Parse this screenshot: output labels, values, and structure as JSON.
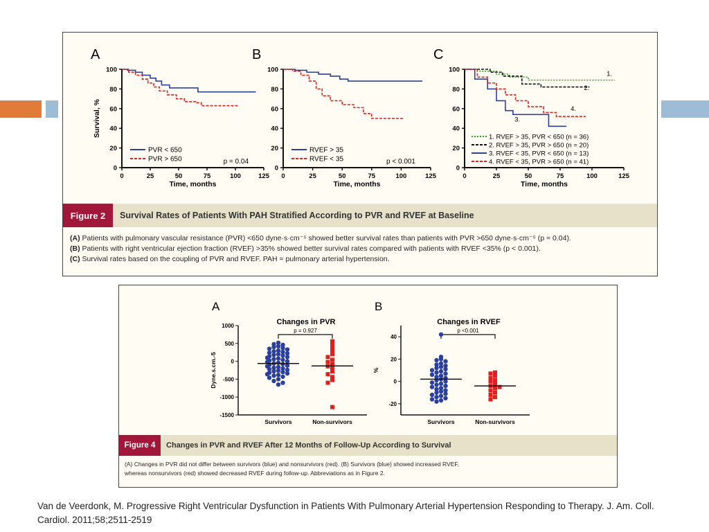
{
  "colors": {
    "blue": "#2b3f9e",
    "red": "#e02020",
    "green": "#22a822",
    "black": "#111111",
    "caption_label_bg": "#a1173a",
    "caption_bar_bg": "#e7e1c9",
    "deco_orange": "#e07b39",
    "deco_blue": "#9dbcd6"
  },
  "figure2": {
    "panel_letters": [
      "A",
      "B",
      "C"
    ],
    "y_axis_label": "Survival, %",
    "x_axis_label": "Time, months",
    "caption_label": "Figure 2",
    "caption_title": "Survival Rates of Patients With PAH Stratified According to PVR and RVEF at Baseline",
    "notes": [
      {
        "lead": "(A)",
        "text": " Patients with pulmonary vascular resistance (PVR) <650 dyne·s·cm⁻⁵ showed better survival rates than patients with PVR >650 dyne·s·cm⁻⁵ (p = 0.04)."
      },
      {
        "lead": "(B)",
        "text": " Patients with right ventricular ejection fraction (RVEF) >35% showed better survival rates compared with patients with RVEF <35% (p < 0.001)."
      },
      {
        "lead": "(C)",
        "text": " Survival rates based on the coupling of PVR and RVEF. PAH = pulmonary arterial hypertension."
      }
    ],
    "panelA": {
      "legend": [
        "PVR < 650",
        "PVR > 650"
      ],
      "pvalue": "p = 0.04"
    },
    "panelB": {
      "legend": [
        "RVEF > 35",
        "RVEF < 35"
      ],
      "pvalue": "p < 0.001"
    },
    "panelC": {
      "legend": [
        "1. RVEF > 35, PVR < 650 (n = 36)",
        "2. RVEF > 35, PVR > 650 (n = 20)",
        "3. RVEF < 35, PVR < 650 (n = 13)",
        "4. RVEF < 35, PVR > 650 (n = 41)"
      ],
      "curve_labels": [
        "1.",
        "2.",
        "3.",
        "4."
      ]
    }
  },
  "figure4": {
    "panel_letters": [
      "A",
      "B"
    ],
    "caption_label": "Figure 4",
    "caption_title": "Changes in PVR and RVEF After 12 Months of Follow-Up According to Survival",
    "notes": [
      "(A) Changes in PVR did not differ between survivors (blue) and nonsurvivors (red). (B) Survivors (blue) showed increased RVEF,",
      "whereas nonsurvivors (red) showed decreased RVEF during follow-up. Abbreviations as in Figure 2."
    ],
    "panelA": {
      "title": "Changes in PVR",
      "ylabel": "Dyne.s.cm.-5",
      "pvalue": "p = 0.927"
    },
    "panelB": {
      "title": "Changes in RVEF",
      "ylabel": "%",
      "pvalue": "p <0.001"
    }
  },
  "citation": "Van de Veerdonk, M. Progressive Right Ventricular Dysfunction in Patients With Pulmonary Arterial Hypertension Responding to Therapy. J. Am. Coll. Cardiol. 2011;58;2511-2519",
  "chart_data": [
    {
      "type": "line",
      "title": "",
      "xlabel": "Time, months",
      "ylabel": "Survival, %",
      "xlim": [
        0,
        125
      ],
      "ylim": [
        0,
        100
      ],
      "xticks": [
        0,
        25,
        50,
        75,
        100,
        125
      ],
      "yticks": [
        0,
        20,
        40,
        60,
        80,
        100
      ],
      "annotation": "p = 0.04",
      "series": [
        {
          "name": "PVR < 650",
          "color": "#2b3f9e",
          "dash": false,
          "points": [
            [
              0,
              100
            ],
            [
              5,
              99
            ],
            [
              12,
              97
            ],
            [
              18,
              94
            ],
            [
              25,
              91
            ],
            [
              30,
              88
            ],
            [
              35,
              84
            ],
            [
              42,
              81
            ],
            [
              60,
              81
            ],
            [
              67,
              77
            ],
            [
              118,
              77
            ]
          ]
        },
        {
          "name": "PVR > 650",
          "color": "#e02020",
          "dash": true,
          "points": [
            [
              0,
              100
            ],
            [
              6,
              97
            ],
            [
              12,
              94
            ],
            [
              18,
              90
            ],
            [
              23,
              86
            ],
            [
              28,
              82
            ],
            [
              33,
              78
            ],
            [
              40,
              74
            ],
            [
              48,
              70
            ],
            [
              55,
              67
            ],
            [
              65,
              66
            ],
            [
              70,
              63
            ],
            [
              102,
              63
            ]
          ]
        }
      ]
    },
    {
      "type": "line",
      "title": "",
      "xlabel": "Time, months",
      "ylabel": "",
      "xlim": [
        0,
        125
      ],
      "ylim": [
        0,
        100
      ],
      "xticks": [
        0,
        25,
        50,
        75,
        100,
        125
      ],
      "yticks": [
        0,
        20,
        40,
        60,
        80,
        100
      ],
      "annotation": "p < 0.001",
      "series": [
        {
          "name": "RVEF > 35",
          "color": "#2b3f9e",
          "dash": false,
          "points": [
            [
              0,
              100
            ],
            [
              10,
              99
            ],
            [
              20,
              97
            ],
            [
              30,
              95
            ],
            [
              40,
              93
            ],
            [
              48,
              90
            ],
            [
              55,
              88
            ],
            [
              118,
              88
            ]
          ]
        },
        {
          "name": "RVEF < 35",
          "color": "#e02020",
          "dash": true,
          "points": [
            [
              0,
              100
            ],
            [
              8,
              98
            ],
            [
              15,
              94
            ],
            [
              22,
              88
            ],
            [
              28,
              80
            ],
            [
              33,
              73
            ],
            [
              40,
              68
            ],
            [
              50,
              64
            ],
            [
              60,
              61
            ],
            [
              68,
              55
            ],
            [
              75,
              50
            ],
            [
              102,
              50
            ]
          ]
        }
      ]
    },
    {
      "type": "line",
      "title": "",
      "xlabel": "Time, months",
      "ylabel": "",
      "xlim": [
        0,
        125
      ],
      "ylim": [
        0,
        100
      ],
      "xticks": [
        0,
        25,
        50,
        75,
        100,
        125
      ],
      "yticks": [
        0,
        20,
        40,
        60,
        80,
        100
      ],
      "series": [
        {
          "name": "1. RVEF > 35, PVR < 650 (n = 36)",
          "color": "#22a822",
          "dash": "dot",
          "points": [
            [
              0,
              100
            ],
            [
              12,
              98
            ],
            [
              25,
              95
            ],
            [
              35,
              92
            ],
            [
              50,
              89
            ],
            [
              118,
              89
            ]
          ]
        },
        {
          "name": "2. RVEF > 35, PVR > 650 (n = 20)",
          "color": "#111111",
          "dash": "dash",
          "points": [
            [
              0,
              100
            ],
            [
              20,
              97
            ],
            [
              30,
              93
            ],
            [
              45,
              85
            ],
            [
              60,
              82
            ],
            [
              98,
              82
            ]
          ]
        },
        {
          "name": "3. RVEF < 35, PVR < 650 (n = 13)",
          "color": "#2b3f9e",
          "dash": false,
          "points": [
            [
              0,
              100
            ],
            [
              8,
              90
            ],
            [
              18,
              80
            ],
            [
              25,
              68
            ],
            [
              32,
              58
            ],
            [
              38,
              54
            ],
            [
              50,
              54
            ],
            [
              66,
              42
            ],
            [
              80,
              42
            ]
          ]
        },
        {
          "name": "4. RVEF < 35, PVR > 650 (n = 41)",
          "color": "#e02020",
          "dash": true,
          "points": [
            [
              0,
              100
            ],
            [
              10,
              92
            ],
            [
              18,
              86
            ],
            [
              25,
              80
            ],
            [
              32,
              74
            ],
            [
              40,
              68
            ],
            [
              50,
              62
            ],
            [
              62,
              56
            ],
            [
              72,
              52
            ],
            [
              95,
              52
            ]
          ]
        }
      ]
    },
    {
      "type": "scatter",
      "title": "Changes in PVR",
      "ylabel": "Dyne.s.cm.-5",
      "categories": [
        "Survivors",
        "Non-survivors"
      ],
      "ylim": [
        -1500,
        1000
      ],
      "yticks": [
        1000,
        500,
        0,
        -500,
        -1000,
        -1500
      ],
      "annotation": "p = 0.927",
      "series": [
        {
          "name": "Survivors",
          "color": "#2b3f9e",
          "marker": "circle",
          "mean": -60,
          "values": [
            520,
            480,
            460,
            420,
            400,
            370,
            350,
            330,
            300,
            280,
            260,
            240,
            220,
            200,
            180,
            160,
            140,
            120,
            100,
            80,
            60,
            40,
            20,
            0,
            -20,
            -40,
            -60,
            -80,
            -100,
            -120,
            -140,
            -160,
            -180,
            -200,
            -220,
            -240,
            -260,
            -280,
            -300,
            -320,
            -340,
            -360,
            -380,
            -400,
            -430,
            -460,
            -500,
            -550,
            -600,
            -650
          ]
        },
        {
          "name": "Non-survivors",
          "color": "#e02020",
          "marker": "square",
          "mean": -130,
          "values": [
            560,
            480,
            380,
            300,
            200,
            120,
            40,
            -20,
            -80,
            -140,
            -200,
            -280,
            -360,
            -440,
            -520,
            -600,
            -1280
          ]
        }
      ]
    },
    {
      "type": "scatter",
      "title": "Changes in RVEF",
      "ylabel": "%",
      "categories": [
        "Survivors",
        "Non-survivors"
      ],
      "ylim": [
        -30,
        50
      ],
      "yticks": [
        40,
        20,
        0,
        -20
      ],
      "annotation": "p <0.001",
      "series": [
        {
          "name": "Survivors",
          "color": "#2b3f9e",
          "marker": "circle",
          "mean": 2,
          "values": [
            42,
            22,
            20,
            19,
            18,
            16,
            15,
            14,
            13,
            12,
            11,
            10,
            9,
            8,
            7,
            6,
            5,
            4,
            3,
            2,
            1,
            0,
            -1,
            -2,
            -3,
            -4,
            -5,
            -6,
            -7,
            -8,
            -9,
            -10,
            -11,
            -12,
            -13,
            -14,
            -15,
            -16,
            -17,
            -18
          ]
        },
        {
          "name": "Non-survivors",
          "color": "#e02020",
          "marker": "square",
          "mean": -4,
          "values": [
            8,
            7,
            5,
            3,
            1,
            0,
            -2,
            -4,
            -5,
            -6,
            -8,
            -10,
            -12,
            -14,
            -16
          ]
        }
      ]
    }
  ]
}
